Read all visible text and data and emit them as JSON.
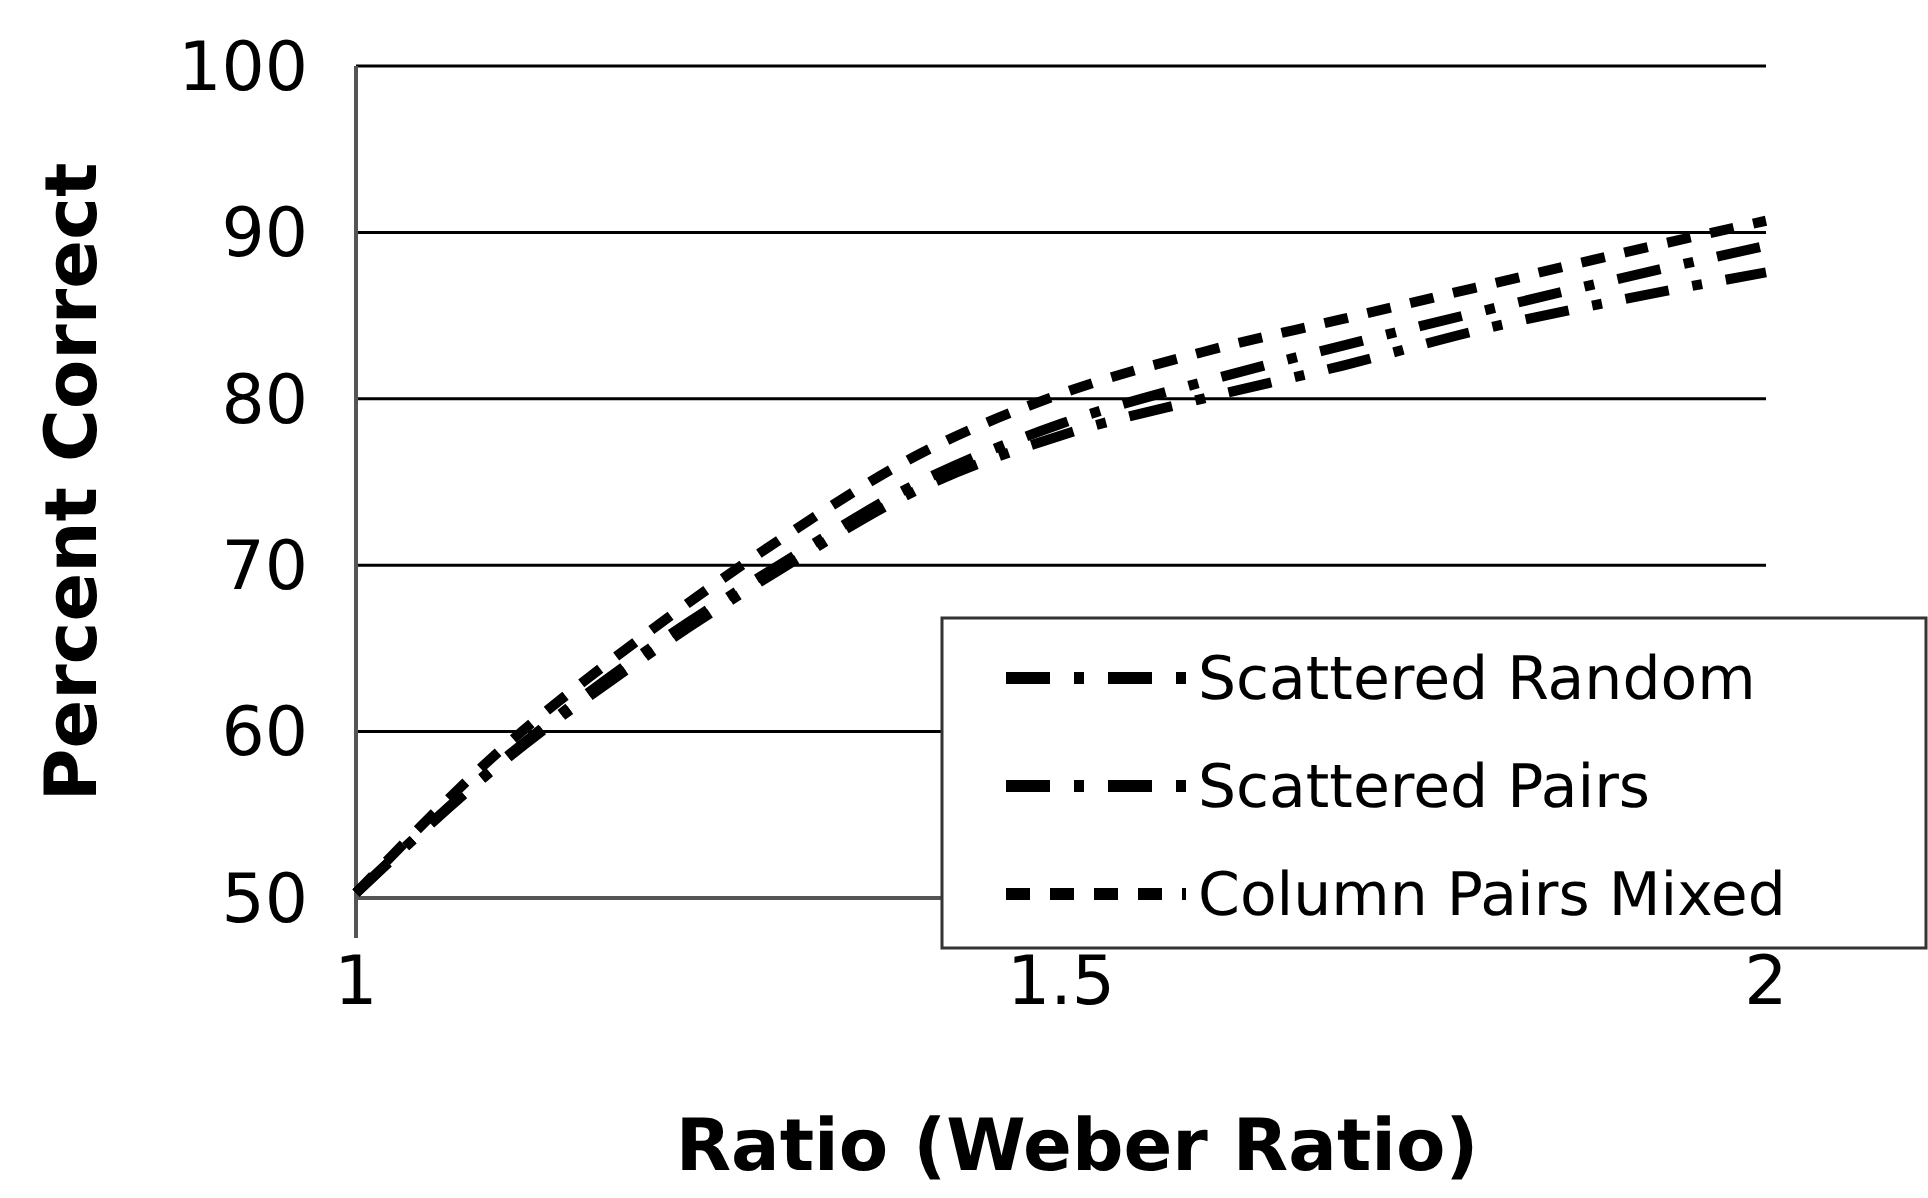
{
  "chart_data": {
    "type": "line",
    "xlabel": "Ratio (Weber Ratio)",
    "ylabel": "Percent Correct",
    "x": [
      1,
      1.1,
      1.2,
      1.3,
      1.4,
      1.5,
      1.6,
      1.7,
      1.8,
      1.9,
      2
    ],
    "xlim": [
      1,
      2
    ],
    "xticks": [
      1,
      1.5,
      2
    ],
    "ylim": [
      50,
      100
    ],
    "yticks": [
      50,
      60,
      70,
      80,
      90,
      100
    ],
    "grid": "y",
    "legend": "bottom right",
    "marker": "none",
    "series": [
      {
        "name": "Scattered Random",
        "color": "#000000",
        "line_style": "dashdot",
        "values": [
          50.3,
          58.0,
          64.5,
          70.0,
          75.0,
          78.5,
          81.0,
          83.2,
          85.3,
          87.3,
          89.2
        ]
      },
      {
        "name": "Scattered Pairs",
        "color": "#000000",
        "line_style": "dashdot",
        "values": [
          50.3,
          57.9,
          64.2,
          69.7,
          74.6,
          77.8,
          80.0,
          82.0,
          84.2,
          86.0,
          87.6
        ]
      },
      {
        "name": "Column Pairs Mixed",
        "color": "#000000",
        "line_style": "dashed",
        "values": [
          50.3,
          58.7,
          65.5,
          71.5,
          76.7,
          80.3,
          82.8,
          84.8,
          86.8,
          88.8,
          90.7
        ]
      }
    ]
  }
}
